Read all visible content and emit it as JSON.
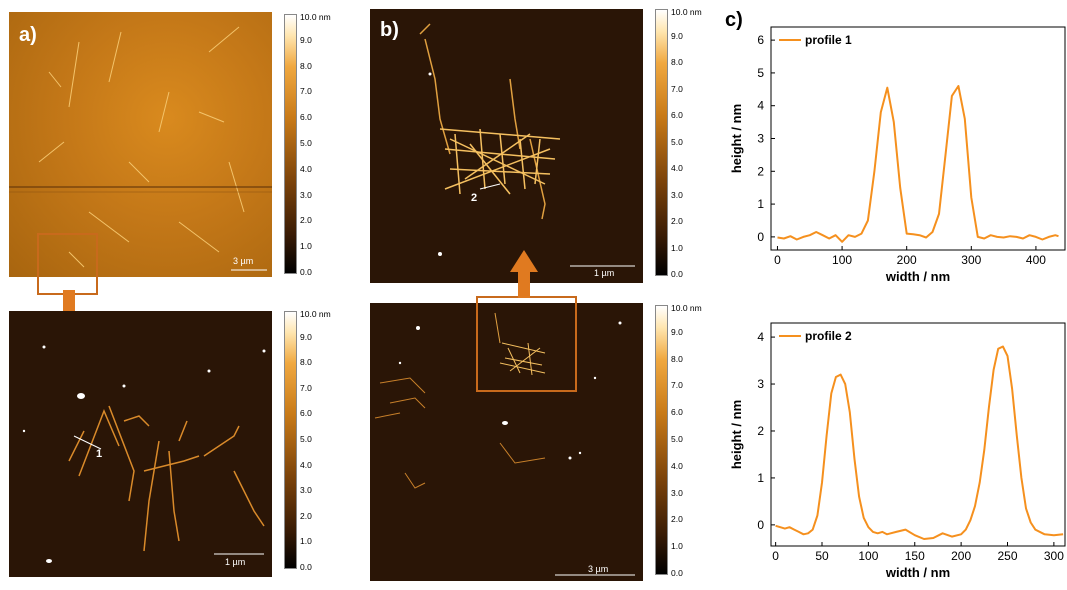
{
  "panels": {
    "a": {
      "label": "a)",
      "scale_top": "3 µm",
      "scale_bottom": "1 µm",
      "profile_marker": "1"
    },
    "b": {
      "label": "b)",
      "scale_top": "1 µm",
      "scale_bottom": "3 µm",
      "profile_marker": "2"
    },
    "c": {
      "label": "c)"
    }
  },
  "colorbar": {
    "top_label": "10.0 nm",
    "ticks": [
      "9.0",
      "8.0",
      "7.0",
      "6.0",
      "5.0",
      "4.0",
      "3.0",
      "2.0",
      "1.0",
      "0.0"
    ]
  },
  "colors": {
    "accent": "#f5901e",
    "afm_bright": "#d98a1e",
    "afm_dark": "#2a1506"
  },
  "chart_data": [
    {
      "type": "line",
      "series": [
        {
          "name": "profile 1",
          "x": [
            0,
            10,
            20,
            30,
            40,
            50,
            60,
            70,
            80,
            90,
            100,
            110,
            120,
            130,
            140,
            150,
            160,
            170,
            180,
            190,
            200,
            210,
            220,
            230,
            240,
            250,
            260,
            270,
            280,
            290,
            300,
            310,
            320,
            330,
            340,
            350,
            360,
            370,
            380,
            390,
            400,
            410,
            420,
            430,
            435
          ],
          "y": [
            -0.02,
            -0.05,
            0.02,
            -0.08,
            0.0,
            0.05,
            0.15,
            0.05,
            -0.05,
            0.05,
            -0.15,
            0.05,
            0.0,
            0.1,
            0.5,
            2.0,
            3.8,
            4.55,
            3.5,
            1.5,
            0.1,
            0.08,
            0.05,
            -0.02,
            0.15,
            0.7,
            2.5,
            4.3,
            4.6,
            3.6,
            1.2,
            0.0,
            -0.05,
            0.05,
            0.0,
            -0.02,
            0.02,
            0.0,
            -0.05,
            0.05,
            0.0,
            -0.08,
            0.0,
            0.05,
            0.02
          ]
        }
      ],
      "xlabel": "width / nm",
      "ylabel": "height / nm",
      "xlim": [
        -10,
        445
      ],
      "ylim": [
        -0.4,
        6.4
      ],
      "xticks": [
        0,
        100,
        200,
        300,
        400
      ],
      "yticks": [
        0,
        1,
        2,
        3,
        4,
        5,
        6
      ],
      "legend": "top-left"
    },
    {
      "type": "line",
      "series": [
        {
          "name": "profile 2",
          "x": [
            0,
            5,
            10,
            15,
            20,
            25,
            30,
            35,
            40,
            45,
            50,
            55,
            60,
            65,
            70,
            75,
            80,
            85,
            90,
            95,
            100,
            105,
            110,
            115,
            120,
            130,
            140,
            150,
            160,
            170,
            180,
            190,
            200,
            205,
            210,
            215,
            220,
            225,
            230,
            235,
            240,
            245,
            250,
            255,
            260,
            265,
            270,
            275,
            280,
            290,
            300,
            310
          ],
          "y": [
            -0.02,
            -0.05,
            -0.08,
            -0.05,
            -0.1,
            -0.15,
            -0.2,
            -0.18,
            -0.1,
            0.2,
            0.9,
            1.9,
            2.8,
            3.15,
            3.2,
            3.0,
            2.4,
            1.4,
            0.6,
            0.15,
            -0.05,
            -0.15,
            -0.18,
            -0.15,
            -0.2,
            -0.15,
            -0.1,
            -0.22,
            -0.3,
            -0.28,
            -0.18,
            -0.25,
            -0.2,
            -0.1,
            0.1,
            0.4,
            0.9,
            1.6,
            2.5,
            3.3,
            3.75,
            3.8,
            3.6,
            2.9,
            1.9,
            1.0,
            0.35,
            0.05,
            -0.1,
            -0.2,
            -0.22,
            -0.2
          ]
        }
      ],
      "xlabel": "width / nm",
      "ylabel": "height / nm",
      "xlim": [
        -5,
        312
      ],
      "ylim": [
        -0.45,
        4.3
      ],
      "xticks": [
        0,
        50,
        100,
        150,
        200,
        250,
        300
      ],
      "yticks": [
        0,
        1,
        2,
        3,
        4
      ],
      "legend": "top-left"
    }
  ]
}
